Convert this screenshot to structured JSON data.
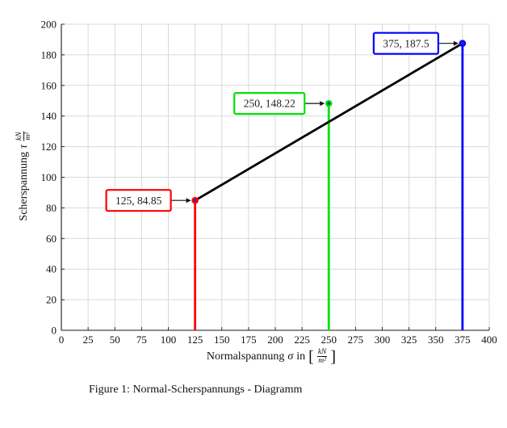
{
  "figure": {
    "caption": "Figure 1: Normal-Scherspannungs - Diagramm"
  },
  "axes": {
    "xlabel": {
      "text": "Normalspannung",
      "symbol": "σ",
      "conj": "in",
      "open": "[",
      "num": "kN",
      "den": "m²",
      "close": "]"
    },
    "ylabel": {
      "text": "Scherspannung",
      "symbol": "τ",
      "num": "kN",
      "den": "m²"
    }
  },
  "chart_data": {
    "type": "line",
    "title": "",
    "xlabel": "Normalspannung σ in [kN/m²]",
    "ylabel": "Scherspannung τ kN/m²",
    "xlim": [
      0,
      400
    ],
    "ylim": [
      0,
      200
    ],
    "x_ticks": [
      0,
      25,
      50,
      75,
      100,
      125,
      150,
      175,
      200,
      225,
      250,
      275,
      300,
      325,
      350,
      375,
      400
    ],
    "y_ticks": [
      0,
      20,
      40,
      60,
      80,
      100,
      120,
      140,
      160,
      180,
      200
    ],
    "grid": true,
    "legend": "none",
    "line_series": {
      "name": "failure-envelope-line",
      "color": "#000000",
      "points": [
        [
          125,
          84.85
        ],
        [
          375,
          187.5
        ]
      ]
    },
    "stems": [
      {
        "x": 125,
        "y": 84.85,
        "color": "#ff0000",
        "label": "125, 84.85"
      },
      {
        "x": 250,
        "y": 148.22,
        "color": "#00e400",
        "label": "250, 148.22"
      },
      {
        "x": 375,
        "y": 187.5,
        "color": "#0000ff",
        "label": "375, 187.5"
      }
    ],
    "colors": {
      "grid": "#d9d9d9",
      "axis": "#1a1a1a",
      "tick_text": "#111111",
      "annotation_text": "#222222",
      "annotation_bg": "#ffffff",
      "arrow": "#111111",
      "marker_core": "#2b2bb8"
    }
  }
}
